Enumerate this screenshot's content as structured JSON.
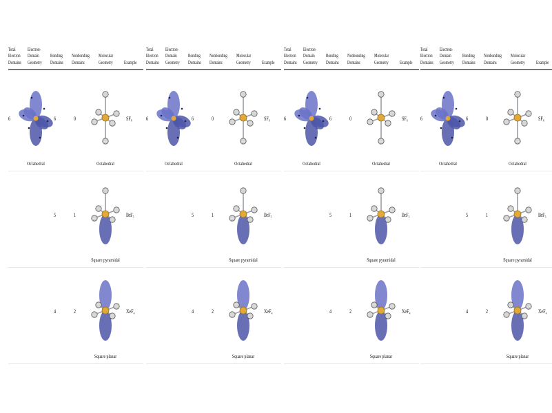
{
  "table": {
    "headers": {
      "total": "Total\nElectron\nDomains",
      "edgeom": "Electron-\nDomain\nGeometry",
      "bonding": "Bonding\nDomains",
      "nonbonding": "Nonbonding\nDomains",
      "molgeom": "Molecular\nGeometry",
      "example": "Example"
    },
    "domain_geometry_label": "Octahedral",
    "rows": [
      {
        "total": "6",
        "bonding": "6",
        "nonbonding": "0",
        "geometry": "Octahedral",
        "example": "SF₆"
      },
      {
        "total": "",
        "bonding": "5",
        "nonbonding": "1",
        "geometry": "Square pyramidal",
        "example": "BrF₅"
      },
      {
        "total": "",
        "bonding": "4",
        "nonbonding": "2",
        "geometry": "Square planar",
        "example": "XeF₄"
      }
    ]
  },
  "colors": {
    "lobe": "#6b73c8",
    "lobe_dark": "#4e56a8",
    "atom": "#e0a93a",
    "terminal": "#d8d8d8",
    "bond": "#9aa0a6"
  }
}
